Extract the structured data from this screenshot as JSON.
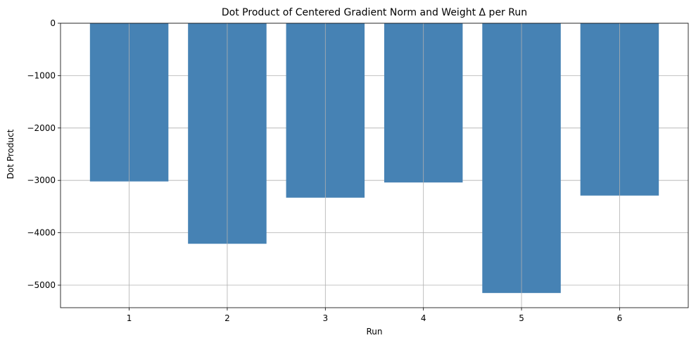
{
  "chart_data": {
    "type": "bar",
    "title": "Dot Product of Centered Gradient Norm and Weight Δ per Run",
    "xlabel": "Run",
    "ylabel": "Dot Product",
    "categories": [
      "1",
      "2",
      "3",
      "4",
      "5",
      "6"
    ],
    "values": [
      -3020,
      -4210,
      -3330,
      -3040,
      -5150,
      -3290
    ],
    "ylim": [
      -5430,
      0
    ],
    "xlim": [
      0.3,
      6.7
    ],
    "yticks": [
      0,
      -1000,
      -2000,
      -3000,
      -4000,
      -5000
    ],
    "ytick_labels": [
      "0",
      "−1000",
      "−2000",
      "−3000",
      "−4000",
      "−5000"
    ],
    "bar_color": "#4682b4",
    "grid": true,
    "legend": false
  }
}
